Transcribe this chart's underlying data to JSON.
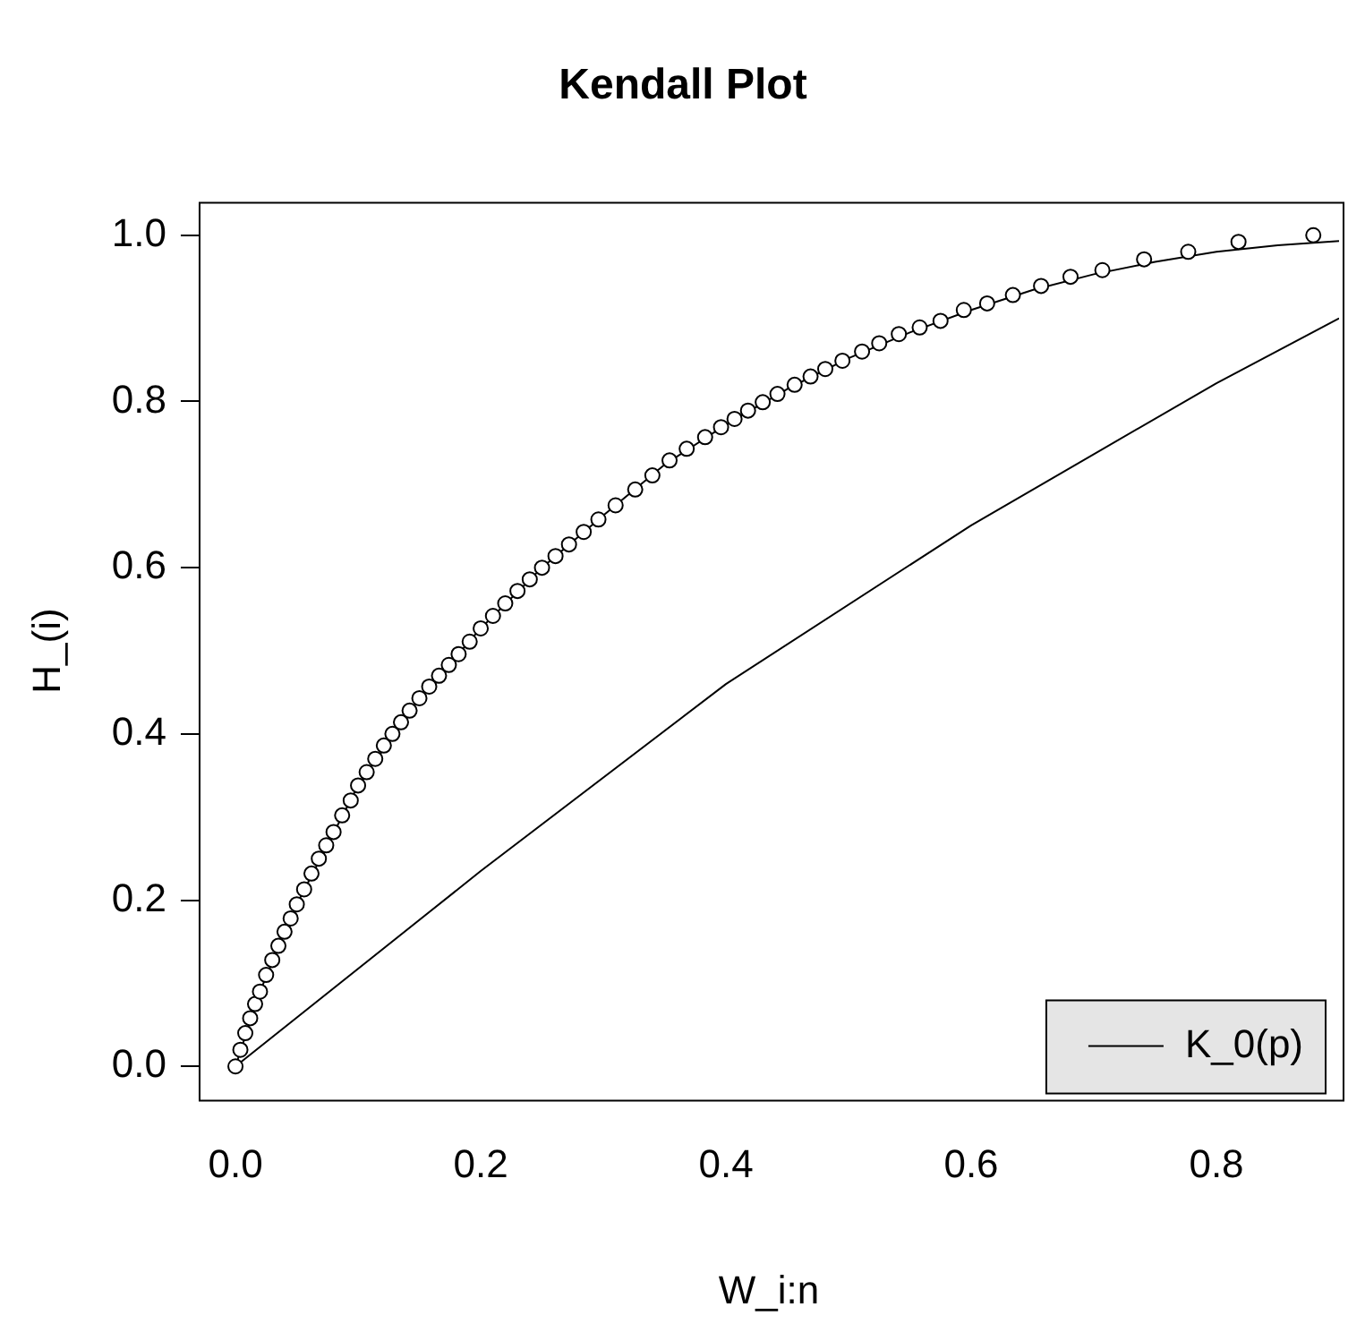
{
  "chart_data": {
    "type": "scatter",
    "title": "Kendall Plot",
    "xlabel": "W_i:n",
    "ylabel": "H_(i)",
    "xlim": [
      -0.03,
      0.9
    ],
    "ylim": [
      -0.04,
      1.04
    ],
    "xticks": [
      {
        "value": 0,
        "label": "0.0"
      },
      0.2,
      0.4,
      0.6,
      0.8
    ],
    "yticks": [
      {
        "value": 0,
        "label": "0.0"
      },
      0.2,
      0.4,
      0.6,
      0.8,
      {
        "value": 1,
        "label": "1.0"
      }
    ],
    "legend": "bottom right",
    "marker": "circle",
    "series": [
      {
        "color": "#000000",
        "x": [
          0,
          0.004,
          0.008,
          0.012,
          0.016,
          0.02,
          0.025,
          0.03,
          0.035,
          0.04,
          0.045,
          0.05,
          0.056,
          0.062,
          0.068,
          0.074,
          0.08,
          0.087,
          0.094,
          0.1,
          0.107,
          0.114,
          0.121,
          0.128,
          0.135,
          0.142,
          0.15,
          0.158,
          0.166,
          0.174,
          0.182,
          0.191,
          0.2,
          0.21,
          0.22,
          0.23,
          0.24,
          0.25,
          0.261,
          0.272,
          0.284,
          0.296,
          0.31,
          0.326,
          0.34,
          0.354,
          0.368,
          0.383,
          0.396,
          0.407,
          0.418,
          0.43,
          0.442,
          0.456,
          0.469,
          0.481,
          0.495,
          0.511,
          0.525,
          0.541,
          0.558,
          0.575,
          0.594,
          0.613,
          0.634,
          0.657,
          0.681,
          0.707,
          0.741,
          0.777,
          0.818,
          0.879
        ],
        "values": [
          0,
          0.02,
          0.04,
          0.058,
          0.075,
          0.09,
          0.11,
          0.128,
          0.145,
          0.162,
          0.178,
          0.195,
          0.213,
          0.232,
          0.25,
          0.266,
          0.282,
          0.302,
          0.32,
          0.338,
          0.354,
          0.37,
          0.386,
          0.4,
          0.414,
          0.428,
          0.443,
          0.457,
          0.47,
          0.483,
          0.496,
          0.511,
          0.527,
          0.542,
          0.557,
          0.572,
          0.586,
          0.6,
          0.614,
          0.628,
          0.643,
          0.658,
          0.675,
          0.694,
          0.711,
          0.729,
          0.743,
          0.757,
          0.769,
          0.779,
          0.789,
          0.799,
          0.809,
          0.82,
          0.83,
          0.839,
          0.849,
          0.86,
          0.87,
          0.881,
          0.889,
          0.897,
          0.91,
          0.918,
          0.928,
          0.939,
          0.95,
          0.958,
          0.971,
          0.98,
          0.992,
          1.0
        ]
      },
      {
        "type": "line",
        "color": "#000000",
        "marker": "none",
        "line_style": "solid",
        "x": [
          0,
          0.02,
          0.05,
          0.1,
          0.15,
          0.2,
          0.25,
          0.3,
          0.35,
          0.4,
          0.45,
          0.5,
          0.55,
          0.6,
          0.65,
          0.7,
          0.75,
          0.8,
          0.85,
          0.9
        ],
        "values": [
          0,
          0.09,
          0.195,
          0.338,
          0.443,
          0.527,
          0.6,
          0.663,
          0.724,
          0.772,
          0.815,
          0.852,
          0.883,
          0.91,
          0.934,
          0.953,
          0.968,
          0.98,
          0.988,
          0.993
        ]
      },
      {
        "type": "line",
        "name": "K_0(p)",
        "color": "#000000",
        "marker": "none",
        "line_style": "solid",
        "x": [
          0,
          0.2,
          0.4,
          0.6,
          0.8,
          0.9
        ],
        "values": [
          0,
          0.235,
          0.46,
          0.651,
          0.822,
          0.9
        ]
      }
    ]
  }
}
